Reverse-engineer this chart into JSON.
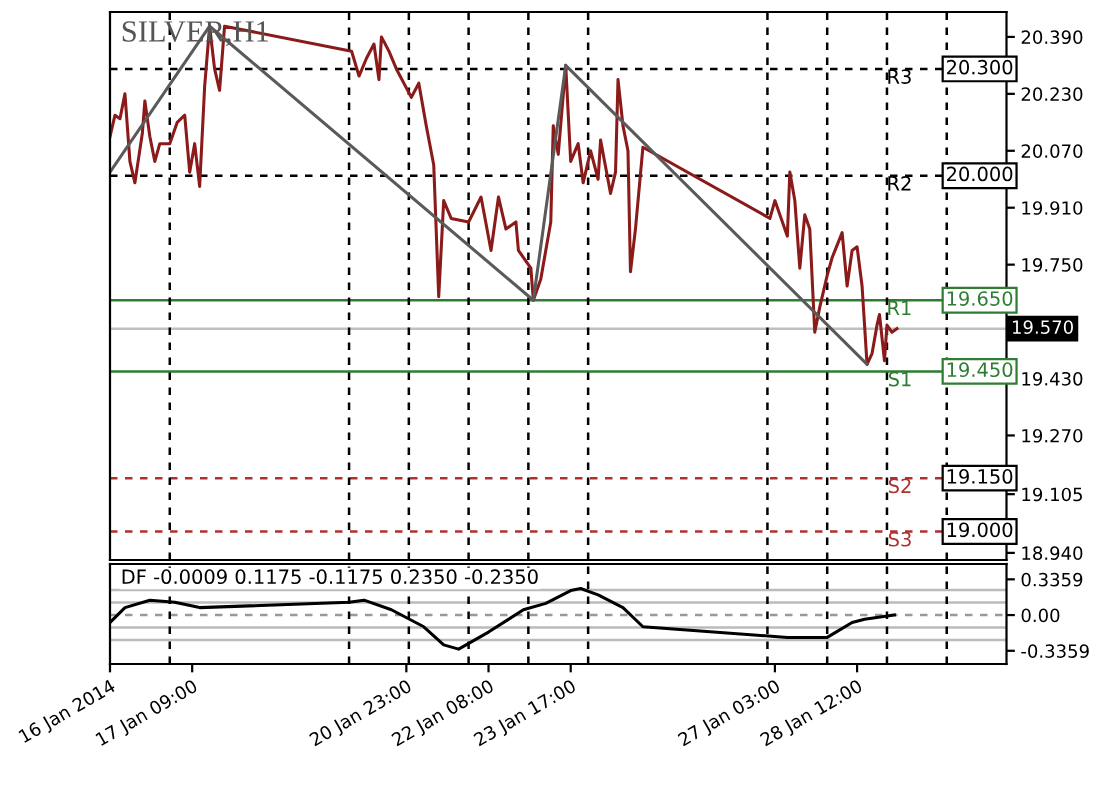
{
  "chart_data": [
    {
      "type": "line",
      "title": "SILVER,H1",
      "xlim": [
        "2014-01-16T00:00",
        "2014-01-31T00:00"
      ],
      "ylim": [
        18.92,
        20.46
      ],
      "yticks": [
        {
          "value": 20.39,
          "label": "20.390"
        },
        {
          "value": 20.23,
          "label": "20.230"
        },
        {
          "value": 20.07,
          "label": "20.070"
        },
        {
          "value": 19.91,
          "label": "19.910"
        },
        {
          "value": 19.75,
          "label": "19.750"
        },
        {
          "value": 19.43,
          "label": "19.430"
        },
        {
          "value": 19.27,
          "label": "19.270"
        },
        {
          "value": 19.105,
          "label": "19.105"
        },
        {
          "value": 18.94,
          "label": "18.940"
        }
      ],
      "tick_labels": "y",
      "grid": false,
      "legend": false,
      "marker": "none",
      "line_style": "solid",
      "series": [
        {
          "color": "#8b1a1a",
          "x": [
            "2014-01-16T00:00",
            "2014-01-16T02:00",
            "2014-01-16T04:00",
            "2014-01-16T06:00",
            "2014-01-16T08:00",
            "2014-01-16T10:00",
            "2014-01-16T13:00",
            "2014-01-16T14:00",
            "2014-01-16T16:00",
            "2014-01-16T18:00",
            "2014-01-16T20:00",
            "2014-01-17T00:00",
            "2014-01-17T03:00",
            "2014-01-17T06:00",
            "2014-01-17T08:00",
            "2014-01-17T10:00",
            "2014-01-17T12:00",
            "2014-01-17T14:00",
            "2014-01-17T16:00",
            "2014-01-17T18:00",
            "2014-01-17T20:00",
            "2014-01-17T22:00",
            "2014-01-20T01:00",
            "2014-01-20T04:00",
            "2014-01-20T07:00",
            "2014-01-20T10:00",
            "2014-01-20T12:00",
            "2014-01-20T13:00",
            "2014-01-20T16:00",
            "2014-01-20T19:00",
            "2014-01-21T01:00",
            "2014-01-21T04:00",
            "2014-01-21T07:00",
            "2014-01-21T10:00",
            "2014-01-21T12:00",
            "2014-01-21T14:00",
            "2014-01-21T17:00",
            "2014-01-22T00:00",
            "2014-01-22T05:00",
            "2014-01-22T09:00",
            "2014-01-22T12:00",
            "2014-01-22T15:00",
            "2014-01-22T19:00",
            "2014-01-22T20:00",
            "2014-01-23T01:00",
            "2014-01-23T02:00",
            "2014-01-23T05:00",
            "2014-01-23T09:00",
            "2014-01-23T10:00",
            "2014-01-23T12:00",
            "2014-01-23T15:00",
            "2014-01-23T17:00",
            "2014-01-23T20:00",
            "2014-01-23T22:00",
            "2014-01-24T01:00",
            "2014-01-24T04:00",
            "2014-01-24T05:00",
            "2014-01-24T09:00",
            "2014-01-24T11:00",
            "2014-01-24T12:00",
            "2014-01-24T14:00",
            "2014-01-24T16:00",
            "2014-01-24T17:00",
            "2014-01-24T19:00",
            "2014-01-24T22:00",
            "2014-01-27T01:00",
            "2014-01-27T03:00",
            "2014-01-27T08:00",
            "2014-01-27T09:00",
            "2014-01-27T11:00",
            "2014-01-27T13:00",
            "2014-01-27T15:00",
            "2014-01-27T17:00",
            "2014-01-27T19:00",
            "2014-01-27T21:00",
            "2014-01-28T00:00",
            "2014-01-28T02:00",
            "2014-01-28T06:00",
            "2014-01-28T08:00",
            "2014-01-28T10:00",
            "2014-01-28T12:00",
            "2014-01-28T14:00",
            "2014-01-28T15:00",
            "2014-01-28T16:00",
            "2014-01-28T18:00",
            "2014-01-28T20:00",
            "2014-01-28T21:00",
            "2014-01-28T23:00",
            "2014-01-29T00:00",
            "2014-01-29T02:00",
            "2014-01-29T04:00"
          ],
          "values": [
            20.11,
            20.17,
            20.16,
            20.23,
            20.04,
            19.98,
            20.12,
            20.21,
            20.11,
            20.04,
            20.09,
            20.09,
            20.15,
            20.17,
            20.01,
            20.09,
            19.97,
            20.25,
            20.42,
            20.3,
            20.24,
            20.42,
            20.35,
            20.28,
            20.33,
            20.37,
            20.27,
            20.39,
            20.35,
            20.3,
            20.22,
            20.26,
            20.14,
            20.03,
            19.66,
            19.93,
            19.88,
            19.87,
            19.94,
            19.79,
            19.94,
            19.85,
            19.87,
            19.79,
            19.74,
            19.65,
            19.71,
            19.87,
            20.14,
            20.06,
            20.31,
            20.04,
            20.09,
            19.98,
            20.07,
            19.99,
            20.1,
            19.95,
            20.01,
            20.27,
            20.14,
            20.07,
            19.73,
            19.85,
            20.08,
            19.88,
            19.93,
            19.83,
            20.01,
            19.93,
            19.74,
            19.89,
            19.85,
            19.56,
            19.63,
            19.72,
            19.77,
            19.84,
            19.69,
            19.79,
            19.8,
            19.69,
            19.58,
            19.47,
            19.5,
            19.58,
            19.61,
            19.48,
            19.58,
            19.56,
            19.57
          ]
        },
        {
          "color": "#5a5a5a",
          "x": [
            "2014-01-16T00:00",
            "2014-01-17T16:00",
            "2014-01-23T02:00",
            "2014-01-23T15:00",
            "2014-01-28T16:00"
          ],
          "values": [
            20.01,
            20.42,
            19.65,
            20.31,
            19.47
          ]
        }
      ],
      "ref_lines": [
        {
          "axis": "y",
          "value": 20.3,
          "label": "R3",
          "color": "#000000",
          "line_style": "dashed"
        },
        {
          "axis": "y",
          "value": 20.0,
          "label": "R2",
          "color": "#000000",
          "line_style": "dashed"
        },
        {
          "axis": "y",
          "value": 19.65,
          "label": "R1",
          "color": "#2e7d32",
          "line_style": "solid"
        },
        {
          "axis": "y",
          "value": 19.45,
          "label": "S1",
          "color": "#2e7d32",
          "line_style": "solid"
        },
        {
          "axis": "y",
          "value": 19.15,
          "label": "S2",
          "color": "#b03030",
          "line_style": "dashed"
        },
        {
          "axis": "y",
          "value": 19.0,
          "label": "S3",
          "color": "#b03030",
          "line_style": "dashed"
        },
        {
          "axis": "y",
          "value": 19.57,
          "label": "19.570",
          "color": "#c0c0c0",
          "line_style": "solid"
        },
        {
          "axis": "x",
          "value": "2014-01-17",
          "color": "#000000",
          "line_style": "dashed"
        },
        {
          "axis": "x",
          "value": "2014-01-20",
          "color": "#000000",
          "line_style": "dashed"
        },
        {
          "axis": "x",
          "value": "2014-01-21",
          "color": "#000000",
          "line_style": "dashed"
        },
        {
          "axis": "x",
          "value": "2014-01-22",
          "color": "#000000",
          "line_style": "dashed"
        },
        {
          "axis": "x",
          "value": "2014-01-23",
          "color": "#000000",
          "line_style": "dashed"
        },
        {
          "axis": "x",
          "value": "2014-01-24",
          "color": "#000000",
          "line_style": "dashed"
        },
        {
          "axis": "x",
          "value": "2014-01-27",
          "color": "#000000",
          "line_style": "dashed"
        },
        {
          "axis": "x",
          "value": "2014-01-28",
          "color": "#000000",
          "line_style": "dashed"
        },
        {
          "axis": "x",
          "value": "2014-01-29",
          "color": "#000000",
          "line_style": "dashed"
        },
        {
          "axis": "x",
          "value": "2014-01-30",
          "color": "#000000",
          "line_style": "dashed"
        }
      ],
      "annotations": [
        "20.300",
        "20.000",
        "19.650",
        "19.450",
        "19.150",
        "19.000"
      ]
    },
    {
      "type": "line",
      "title": "DF -0.0009 0.1175 -0.1175 0.2350 -0.2350",
      "xlim": [
        "2014-01-16T00:00",
        "2014-01-31T00:00"
      ],
      "ylim": [
        -0.46,
        0.48
      ],
      "xticks": [
        {
          "value": "2014-01-16T00:00",
          "label": "16 Jan 2014"
        },
        {
          "value": "2014-01-17T09:00",
          "label": "17 Jan 09:00"
        },
        {
          "value": "2014-01-20T23:00",
          "label": "20 Jan 23:00"
        },
        {
          "value": "2014-01-22T08:00",
          "label": "22 Jan 08:00"
        },
        {
          "value": "2014-01-23T17:00",
          "label": "23 Jan 17:00"
        },
        {
          "value": "2014-01-27T03:00",
          "label": "27 Jan 03:00"
        },
        {
          "value": "2014-01-28T12:00",
          "label": "28 Jan 12:00"
        }
      ],
      "yticks": [
        0.3359,
        {
          "value": 0,
          "label": "0.00"
        },
        -0.3359
      ],
      "grid": false,
      "legend": false,
      "marker": "none",
      "line_style": "solid",
      "series": [
        {
          "color": "#000000",
          "x": [
            "2014-01-16T00:00",
            "2014-01-16T06:00",
            "2014-01-16T16:00",
            "2014-01-17T02:00",
            "2014-01-17T12:00",
            "2014-01-20T00:00",
            "2014-01-20T06:00",
            "2014-01-20T17:00",
            "2014-01-21T06:00",
            "2014-01-21T14:00",
            "2014-01-21T20:00",
            "2014-01-22T08:00",
            "2014-01-22T22:00",
            "2014-01-23T07:00",
            "2014-01-23T17:00",
            "2014-01-23T21:00",
            "2014-01-24T04:00",
            "2014-01-24T14:00",
            "2014-01-24T22:00",
            "2014-01-27T08:00",
            "2014-01-27T16:00",
            "2014-01-28T00:00",
            "2014-01-28T10:00",
            "2014-01-28T15:00",
            "2014-01-29T03:00"
          ],
          "values": [
            -0.07,
            0.07,
            0.14,
            0.12,
            0.07,
            0.12,
            0.14,
            0.05,
            -0.11,
            -0.28,
            -0.32,
            -0.16,
            0.05,
            0.11,
            0.23,
            0.25,
            0.19,
            0.07,
            -0.11,
            -0.21,
            -0.21,
            -0.21,
            -0.07,
            -0.04,
            0.0
          ]
        }
      ],
      "ref_lines": [
        {
          "axis": "y",
          "value": 0,
          "color": "#999999",
          "line_style": "dashed"
        },
        {
          "axis": "y",
          "value": 0.1175,
          "color": "#bbbbbb",
          "line_style": "solid"
        },
        {
          "axis": "y",
          "value": -0.1175,
          "color": "#bbbbbb",
          "line_style": "solid"
        },
        {
          "axis": "y",
          "value": 0.235,
          "color": "#bbbbbb",
          "line_style": "solid"
        },
        {
          "axis": "y",
          "value": -0.235,
          "color": "#bbbbbb",
          "line_style": "solid"
        },
        {
          "axis": "x",
          "value": "2014-01-17",
          "color": "#000000",
          "line_style": "dashed"
        },
        {
          "axis": "x",
          "value": "2014-01-20",
          "color": "#000000",
          "line_style": "dashed"
        },
        {
          "axis": "x",
          "value": "2014-01-21",
          "color": "#000000",
          "line_style": "dashed"
        },
        {
          "axis": "x",
          "value": "2014-01-22",
          "color": "#000000",
          "line_style": "dashed"
        },
        {
          "axis": "x",
          "value": "2014-01-23",
          "color": "#000000",
          "line_style": "dashed"
        },
        {
          "axis": "x",
          "value": "2014-01-24",
          "color": "#000000",
          "line_style": "dashed"
        },
        {
          "axis": "x",
          "value": "2014-01-27",
          "color": "#000000",
          "line_style": "dashed"
        },
        {
          "axis": "x",
          "value": "2014-01-28",
          "color": "#000000",
          "line_style": "dashed"
        },
        {
          "axis": "x",
          "value": "2014-01-29",
          "color": "#000000",
          "line_style": "dashed"
        },
        {
          "axis": "x",
          "value": "2014-01-30",
          "color": "#000000",
          "line_style": "dashed"
        }
      ]
    }
  ]
}
